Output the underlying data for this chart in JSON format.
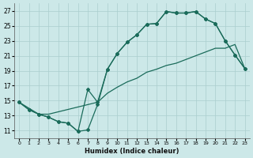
{
  "xlabel": "Humidex (Indice chaleur)",
  "background_color": "#cce8e8",
  "grid_color": "#aacece",
  "line_color": "#1a6b5a",
  "xlim": [
    -0.5,
    23.5
  ],
  "ylim": [
    10.0,
    28.0
  ],
  "yticks": [
    11,
    13,
    15,
    17,
    19,
    21,
    23,
    25,
    27
  ],
  "xticks": [
    0,
    1,
    2,
    3,
    4,
    5,
    6,
    7,
    8,
    9,
    10,
    11,
    12,
    13,
    14,
    15,
    16,
    17,
    18,
    19,
    20,
    21,
    22,
    23
  ],
  "line1_x": [
    0,
    1,
    2,
    3,
    4,
    5,
    6,
    7,
    8,
    9,
    10,
    11,
    12,
    13,
    14,
    15,
    16,
    17,
    18,
    19,
    20,
    21,
    22,
    23
  ],
  "line1_y": [
    14.8,
    13.8,
    13.2,
    12.8,
    12.2,
    12.0,
    10.9,
    11.1,
    14.5,
    19.2,
    21.3,
    22.8,
    23.8,
    25.2,
    25.3,
    26.9,
    26.7,
    26.7,
    26.9,
    25.9,
    25.3,
    23.0,
    21.1,
    19.3
  ],
  "line2_x": [
    0,
    1,
    2,
    3,
    4,
    5,
    6,
    7,
    8,
    9,
    10,
    11,
    12,
    13,
    14,
    15,
    16,
    17,
    18,
    19,
    20,
    21,
    22,
    23
  ],
  "line2_y": [
    14.8,
    13.8,
    13.2,
    12.8,
    12.2,
    12.0,
    10.9,
    16.5,
    14.8,
    19.2,
    21.3,
    22.8,
    23.8,
    25.2,
    25.3,
    26.9,
    26.7,
    26.7,
    26.9,
    25.9,
    25.3,
    23.0,
    21.1,
    19.3
  ],
  "line3_x": [
    0,
    2,
    3,
    8,
    9,
    10,
    11,
    12,
    13,
    14,
    15,
    16,
    17,
    18,
    19,
    20,
    21,
    22,
    23
  ],
  "line3_y": [
    14.8,
    13.2,
    13.2,
    14.8,
    16.0,
    16.8,
    17.5,
    18.0,
    18.8,
    19.2,
    19.7,
    20.0,
    20.5,
    21.0,
    21.5,
    22.0,
    22.0,
    22.5,
    19.3
  ]
}
